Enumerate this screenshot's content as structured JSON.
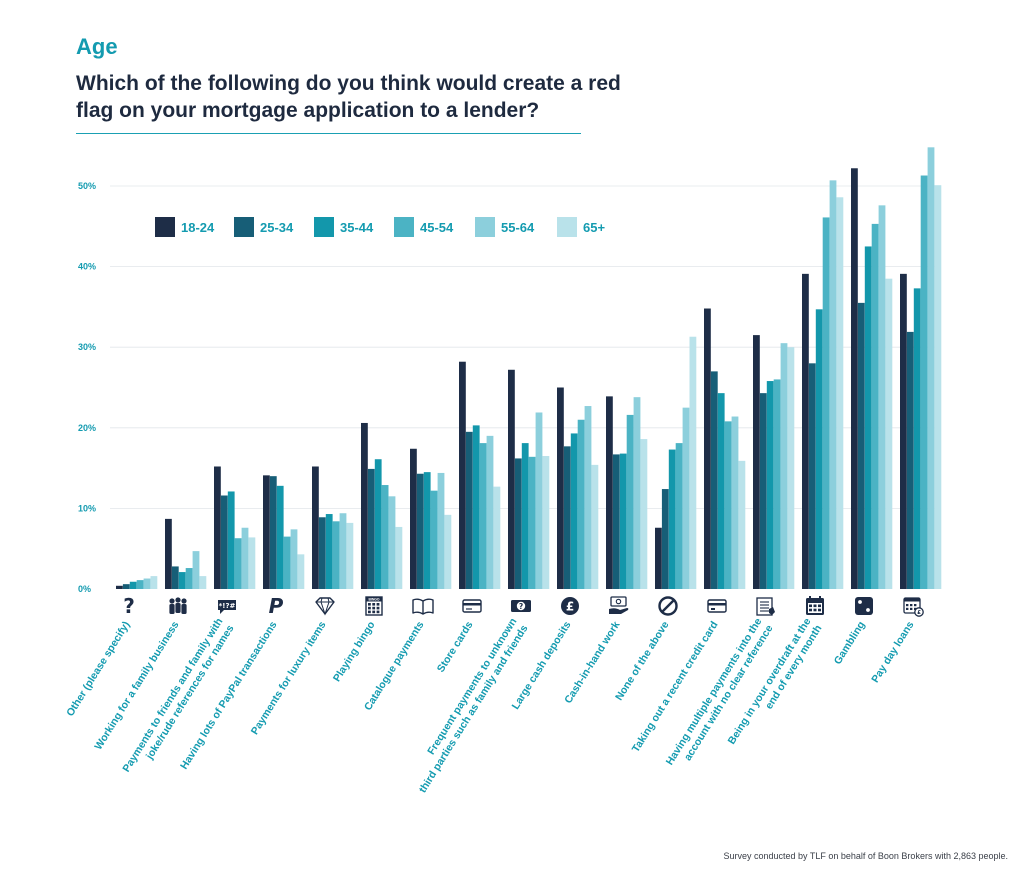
{
  "header": {
    "section": "Age",
    "title": "Which of the following do you  think would create a red flag on your mortgage application to a lender?"
  },
  "footnote": "Survey conducted by TLF on behalf of Boon Brokers with 2,863 people.",
  "colors": {
    "series": [
      "#1e2d47",
      "#175e77",
      "#1397ab",
      "#4bb3c4",
      "#8ccfdc",
      "#b9e2ea"
    ],
    "icon": "#1e2d47",
    "grid": "#e2e6ea",
    "accent": "#149bb0"
  },
  "chart_data": {
    "type": "bar",
    "title": "Which of the following do you  think would create a red flag on your mortgage application to a lender?",
    "xlabel": "",
    "ylabel": "",
    "ylim": [
      0,
      55
    ],
    "yticks": [
      "0%",
      "10%",
      "20%",
      "30%",
      "40%",
      "50%"
    ],
    "ytick_values": [
      0,
      10,
      20,
      30,
      40,
      50
    ],
    "grid": true,
    "legend_position": "top-left",
    "categories": [
      "Other (please specify)",
      "Working for a family business",
      "Payments to friends and family with joke/rude references for names",
      "Having lots of PayPal transactions",
      "Payments for luxury items",
      "Playing bingo",
      "Catalogue payments",
      "Store cards",
      "Frequent payments to unknown third parties such as family and friends",
      "Large cash deposits",
      "Cash-in-hand work",
      "None of the above",
      "Taking out a recent credit card",
      "Having multiple payments into the account with no clear reference",
      "Being in your overdraft at the end of every month",
      "Gambling",
      "Pay day loans"
    ],
    "category_lines": [
      [
        "Other (please specify)"
      ],
      [
        "Working for a family business"
      ],
      [
        "Payments to friends and family with",
        "joke/rude references for names"
      ],
      [
        "Having lots of PayPal transactions"
      ],
      [
        "Payments for luxury items"
      ],
      [
        "Playing bingo"
      ],
      [
        "Catalogue payments"
      ],
      [
        "Store cards"
      ],
      [
        "Frequent payments to unknown",
        "third parties such as family and friends"
      ],
      [
        "Large cash deposits"
      ],
      [
        "Cash-in-hand work"
      ],
      [
        "None of the above"
      ],
      [
        "Taking out a recent credit card"
      ],
      [
        "Having multiple payments into the",
        "account with no clear reference"
      ],
      [
        "Being in your overdraft at the",
        "end of every month"
      ],
      [
        "Gambling"
      ],
      [
        "Pay day loans"
      ]
    ],
    "icons": [
      "question-icon",
      "family-icon",
      "speech-bubble-symbols-icon",
      "paypal-icon",
      "diamond-icon",
      "bingo-card-icon",
      "book-icon",
      "store-card-icon",
      "banknote-question-icon",
      "pound-coin-icon",
      "cash-hand-icon",
      "prohibited-icon",
      "credit-card-icon",
      "statement-icon",
      "calendar-icon",
      "dice-icon",
      "pay-calendar-icon"
    ],
    "bingo_icon_text": "BINGO",
    "series": [
      {
        "name": "18-24",
        "values": [
          0.4,
          8.7,
          15.2,
          14.1,
          15.2,
          20.6,
          17.4,
          28.2,
          27.2,
          25.0,
          23.9,
          7.6,
          34.8,
          31.5,
          39.1,
          52.2,
          39.1
        ]
      },
      {
        "name": "25-34",
        "values": [
          0.6,
          2.8,
          11.6,
          14.0,
          8.9,
          14.9,
          14.3,
          19.5,
          16.2,
          17.7,
          16.7,
          12.4,
          27.0,
          24.3,
          28.0,
          35.5,
          31.9
        ]
      },
      {
        "name": "35-44",
        "values": [
          0.9,
          2.1,
          12.1,
          12.8,
          9.3,
          16.1,
          14.5,
          20.3,
          18.1,
          19.3,
          16.8,
          17.3,
          24.3,
          25.8,
          34.7,
          42.5,
          37.3
        ]
      },
      {
        "name": "45-54",
        "values": [
          1.1,
          2.6,
          6.3,
          6.5,
          8.4,
          12.9,
          12.2,
          18.1,
          16.4,
          21.0,
          21.6,
          18.1,
          20.8,
          26.0,
          46.1,
          45.3,
          51.3
        ]
      },
      {
        "name": "55-64",
        "values": [
          1.3,
          4.7,
          7.6,
          7.4,
          9.4,
          11.5,
          14.4,
          19.0,
          21.9,
          22.7,
          23.8,
          22.5,
          21.4,
          30.5,
          50.7,
          47.6,
          54.8
        ]
      },
      {
        "name": "65+",
        "values": [
          1.6,
          1.6,
          6.4,
          4.3,
          8.2,
          7.7,
          9.2,
          12.7,
          16.5,
          15.4,
          18.6,
          31.3,
          15.9,
          30.0,
          48.6,
          38.5,
          50.1
        ]
      }
    ]
  }
}
